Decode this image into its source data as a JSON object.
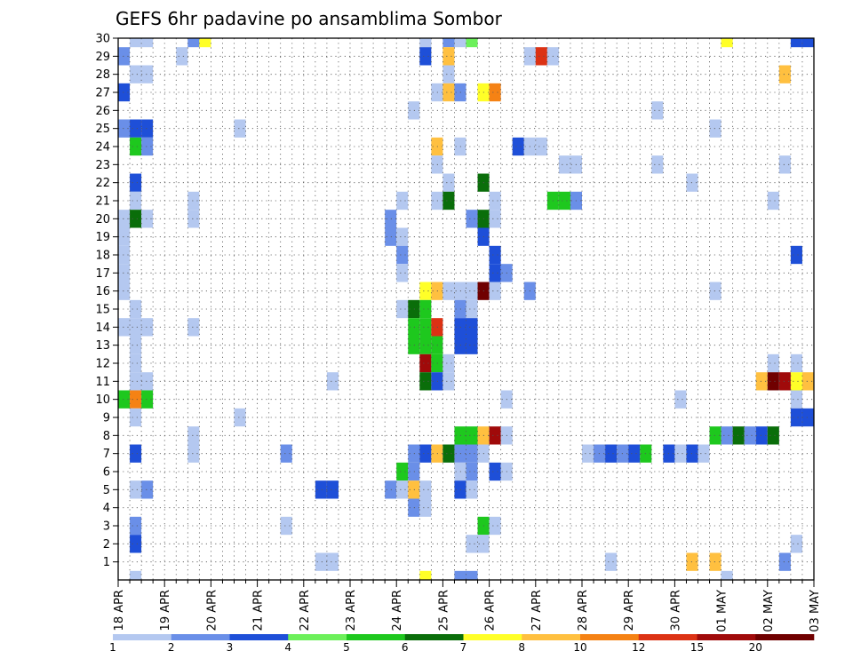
{
  "chart_data": {
    "type": "heatmap",
    "title": "GEFS 6hr padavine po ansamblima Sombor",
    "xlabel": "",
    "ylabel": "",
    "x_ticks": [
      "18 APR",
      "19 APR",
      "20 APR",
      "21 APR",
      "22 APR",
      "23 APR",
      "24 APR",
      "25 APR",
      "26 APR",
      "27 APR",
      "28 APR",
      "29 APR",
      "30 APR",
      "01 MAY",
      "02 MAY",
      "03 MAY"
    ],
    "time_steps_per_day": 4,
    "num_time_steps": 61,
    "y_ticks": [
      1,
      2,
      3,
      4,
      5,
      6,
      7,
      8,
      9,
      10,
      11,
      12,
      13,
      14,
      15,
      16,
      17,
      18,
      19,
      20,
      21,
      22,
      23,
      24,
      25,
      26,
      27,
      28,
      29,
      30
    ],
    "ylim": [
      0,
      30
    ],
    "grid": true,
    "legend": {
      "placement": "bottom",
      "labels": [
        "1",
        "2",
        "3",
        "4",
        "5",
        "6",
        "7",
        "8",
        "10",
        "12",
        "15",
        "20"
      ],
      "colors": [
        "#b4c8f0",
        "#6a8fe8",
        "#1e4fd8",
        "#6cf05a",
        "#1ec81e",
        "#0a6e0a",
        "#ffff28",
        "#ffc040",
        "#f58214",
        "#dc3214",
        "#a00a0a",
        "#700000"
      ]
    },
    "cells": [
      [
        1,
        30,
        0
      ],
      [
        1,
        29,
        0
      ],
      [
        2,
        29,
        0
      ],
      [
        6,
        29,
        1
      ],
      [
        7,
        29,
        6
      ],
      [
        26,
        29,
        0
      ],
      [
        28,
        29,
        1
      ],
      [
        29,
        29,
        0
      ],
      [
        30,
        29,
        3
      ],
      [
        52,
        29,
        6
      ],
      [
        58,
        29,
        2
      ],
      [
        59,
        29,
        2
      ],
      [
        60,
        29,
        0
      ],
      [
        0,
        28,
        1
      ],
      [
        5,
        28,
        0
      ],
      [
        26,
        28,
        2
      ],
      [
        28,
        28,
        7
      ],
      [
        35,
        28,
        0
      ],
      [
        36,
        28,
        9
      ],
      [
        37,
        28,
        0
      ],
      [
        1,
        27,
        0
      ],
      [
        2,
        27,
        0
      ],
      [
        28,
        27,
        0
      ],
      [
        57,
        27,
        7
      ],
      [
        60,
        27,
        0
      ],
      [
        0,
        26,
        2
      ],
      [
        27,
        26,
        0
      ],
      [
        28,
        26,
        7
      ],
      [
        29,
        26,
        1
      ],
      [
        31,
        26,
        6
      ],
      [
        32,
        26,
        8
      ],
      [
        25,
        25,
        0
      ],
      [
        46,
        25,
        0
      ],
      [
        51,
        24,
        0
      ],
      [
        0,
        24,
        1
      ],
      [
        1,
        24,
        2
      ],
      [
        2,
        24,
        2
      ],
      [
        10,
        24,
        0
      ],
      [
        1,
        23,
        4
      ],
      [
        2,
        23,
        1
      ],
      [
        27,
        23,
        7
      ],
      [
        29,
        23,
        0
      ],
      [
        34,
        23,
        2
      ],
      [
        35,
        23,
        0
      ],
      [
        36,
        23,
        0
      ],
      [
        27,
        22,
        0
      ],
      [
        38,
        22,
        0
      ],
      [
        39,
        22,
        0
      ],
      [
        46,
        22,
        0
      ],
      [
        57,
        22,
        0
      ],
      [
        1,
        21,
        2
      ],
      [
        28,
        21,
        0
      ],
      [
        31,
        21,
        5
      ],
      [
        49,
        21,
        0
      ],
      [
        1,
        20,
        0
      ],
      [
        6,
        20,
        0
      ],
      [
        24,
        20,
        0
      ],
      [
        27,
        20,
        0
      ],
      [
        28,
        20,
        5
      ],
      [
        32,
        20,
        0
      ],
      [
        37,
        20,
        4
      ],
      [
        38,
        20,
        4
      ],
      [
        39,
        20,
        1
      ],
      [
        56,
        20,
        0
      ],
      [
        0,
        19,
        0
      ],
      [
        1,
        19,
        5
      ],
      [
        2,
        19,
        0
      ],
      [
        6,
        19,
        0
      ],
      [
        23,
        19,
        1
      ],
      [
        30,
        19,
        1
      ],
      [
        31,
        19,
        5
      ],
      [
        32,
        19,
        0
      ],
      [
        0,
        18,
        0
      ],
      [
        23,
        18,
        1
      ],
      [
        24,
        18,
        0
      ],
      [
        31,
        18,
        2
      ],
      [
        0,
        17,
        0
      ],
      [
        24,
        17,
        1
      ],
      [
        32,
        17,
        2
      ],
      [
        58,
        17,
        2
      ],
      [
        0,
        16,
        0
      ],
      [
        24,
        16,
        0
      ],
      [
        32,
        16,
        2
      ],
      [
        33,
        16,
        1
      ],
      [
        0,
        15,
        0
      ],
      [
        26,
        15,
        6
      ],
      [
        27,
        15,
        7
      ],
      [
        28,
        15,
        0
      ],
      [
        29,
        15,
        0
      ],
      [
        30,
        15,
        0
      ],
      [
        31,
        15,
        11
      ],
      [
        32,
        15,
        0
      ],
      [
        35,
        15,
        1
      ],
      [
        51,
        15,
        0
      ],
      [
        1,
        14,
        0
      ],
      [
        24,
        14,
        0
      ],
      [
        25,
        14,
        5
      ],
      [
        26,
        14,
        4
      ],
      [
        29,
        14,
        1
      ],
      [
        30,
        14,
        0
      ],
      [
        0,
        13,
        0
      ],
      [
        1,
        13,
        0
      ],
      [
        2,
        13,
        0
      ],
      [
        6,
        13,
        0
      ],
      [
        25,
        13,
        4
      ],
      [
        26,
        13,
        4
      ],
      [
        27,
        13,
        9
      ],
      [
        29,
        13,
        2
      ],
      [
        30,
        13,
        2
      ],
      [
        1,
        12,
        0
      ],
      [
        25,
        12,
        4
      ],
      [
        26,
        12,
        4
      ],
      [
        27,
        12,
        4
      ],
      [
        29,
        12,
        2
      ],
      [
        30,
        12,
        2
      ],
      [
        1,
        11,
        0
      ],
      [
        26,
        11,
        10
      ],
      [
        27,
        11,
        4
      ],
      [
        28,
        11,
        0
      ],
      [
        56,
        11,
        0
      ],
      [
        58,
        11,
        0
      ],
      [
        1,
        10,
        0
      ],
      [
        2,
        10,
        0
      ],
      [
        18,
        10,
        0
      ],
      [
        26,
        10,
        5
      ],
      [
        27,
        10,
        2
      ],
      [
        28,
        10,
        0
      ],
      [
        55,
        10,
        7
      ],
      [
        56,
        10,
        11
      ],
      [
        57,
        10,
        10
      ],
      [
        58,
        10,
        6
      ],
      [
        59,
        10,
        7
      ],
      [
        60,
        10,
        5
      ],
      [
        0,
        9,
        4
      ],
      [
        1,
        9,
        8
      ],
      [
        2,
        9,
        4
      ],
      [
        33,
        9,
        0
      ],
      [
        48,
        9,
        0
      ],
      [
        58,
        9,
        0
      ],
      [
        1,
        8,
        0
      ],
      [
        10,
        8,
        0
      ],
      [
        58,
        8,
        2
      ],
      [
        59,
        8,
        2
      ],
      [
        6,
        7,
        0
      ],
      [
        29,
        7,
        4
      ],
      [
        30,
        7,
        4
      ],
      [
        31,
        7,
        7
      ],
      [
        32,
        7,
        10
      ],
      [
        33,
        7,
        0
      ],
      [
        51,
        7,
        4
      ],
      [
        52,
        7,
        1
      ],
      [
        53,
        7,
        5
      ],
      [
        54,
        7,
        1
      ],
      [
        55,
        7,
        2
      ],
      [
        56,
        7,
        5
      ],
      [
        1,
        6,
        2
      ],
      [
        6,
        6,
        0
      ],
      [
        14,
        6,
        1
      ],
      [
        25,
        6,
        1
      ],
      [
        26,
        6,
        2
      ],
      [
        27,
        6,
        7
      ],
      [
        28,
        6,
        5
      ],
      [
        29,
        6,
        1
      ],
      [
        30,
        6,
        1
      ],
      [
        31,
        6,
        0
      ],
      [
        40,
        6,
        0
      ],
      [
        41,
        6,
        1
      ],
      [
        42,
        6,
        2
      ],
      [
        43,
        6,
        1
      ],
      [
        44,
        6,
        2
      ],
      [
        45,
        6,
        4
      ],
      [
        47,
        6,
        2
      ],
      [
        48,
        6,
        0
      ],
      [
        49,
        6,
        2
      ],
      [
        50,
        6,
        0
      ],
      [
        24,
        5,
        4
      ],
      [
        25,
        5,
        1
      ],
      [
        29,
        5,
        0
      ],
      [
        30,
        5,
        1
      ],
      [
        32,
        5,
        2
      ],
      [
        33,
        5,
        0
      ],
      [
        1,
        4,
        0
      ],
      [
        2,
        4,
        1
      ],
      [
        17,
        4,
        2
      ],
      [
        18,
        4,
        2
      ],
      [
        23,
        4,
        1
      ],
      [
        24,
        4,
        0
      ],
      [
        25,
        4,
        7
      ],
      [
        26,
        4,
        0
      ],
      [
        29,
        4,
        2
      ],
      [
        30,
        4,
        0
      ],
      [
        25,
        3,
        1
      ],
      [
        26,
        3,
        0
      ],
      [
        1,
        2,
        1
      ],
      [
        14,
        2,
        0
      ],
      [
        31,
        2,
        4
      ],
      [
        32,
        2,
        0
      ],
      [
        1,
        1,
        2
      ],
      [
        30,
        1,
        0
      ],
      [
        31,
        1,
        0
      ],
      [
        58,
        1,
        0
      ],
      [
        17,
        0,
        0
      ],
      [
        18,
        0,
        0
      ],
      [
        42,
        0,
        0
      ],
      [
        49,
        0,
        7
      ],
      [
        51,
        0,
        7
      ],
      [
        57,
        0,
        1
      ],
      [
        60,
        0,
        0
      ],
      [
        1,
        -1,
        0
      ],
      [
        26,
        -1,
        6
      ],
      [
        29,
        -1,
        1
      ],
      [
        30,
        -1,
        1
      ],
      [
        52,
        -1,
        0
      ]
    ]
  }
}
